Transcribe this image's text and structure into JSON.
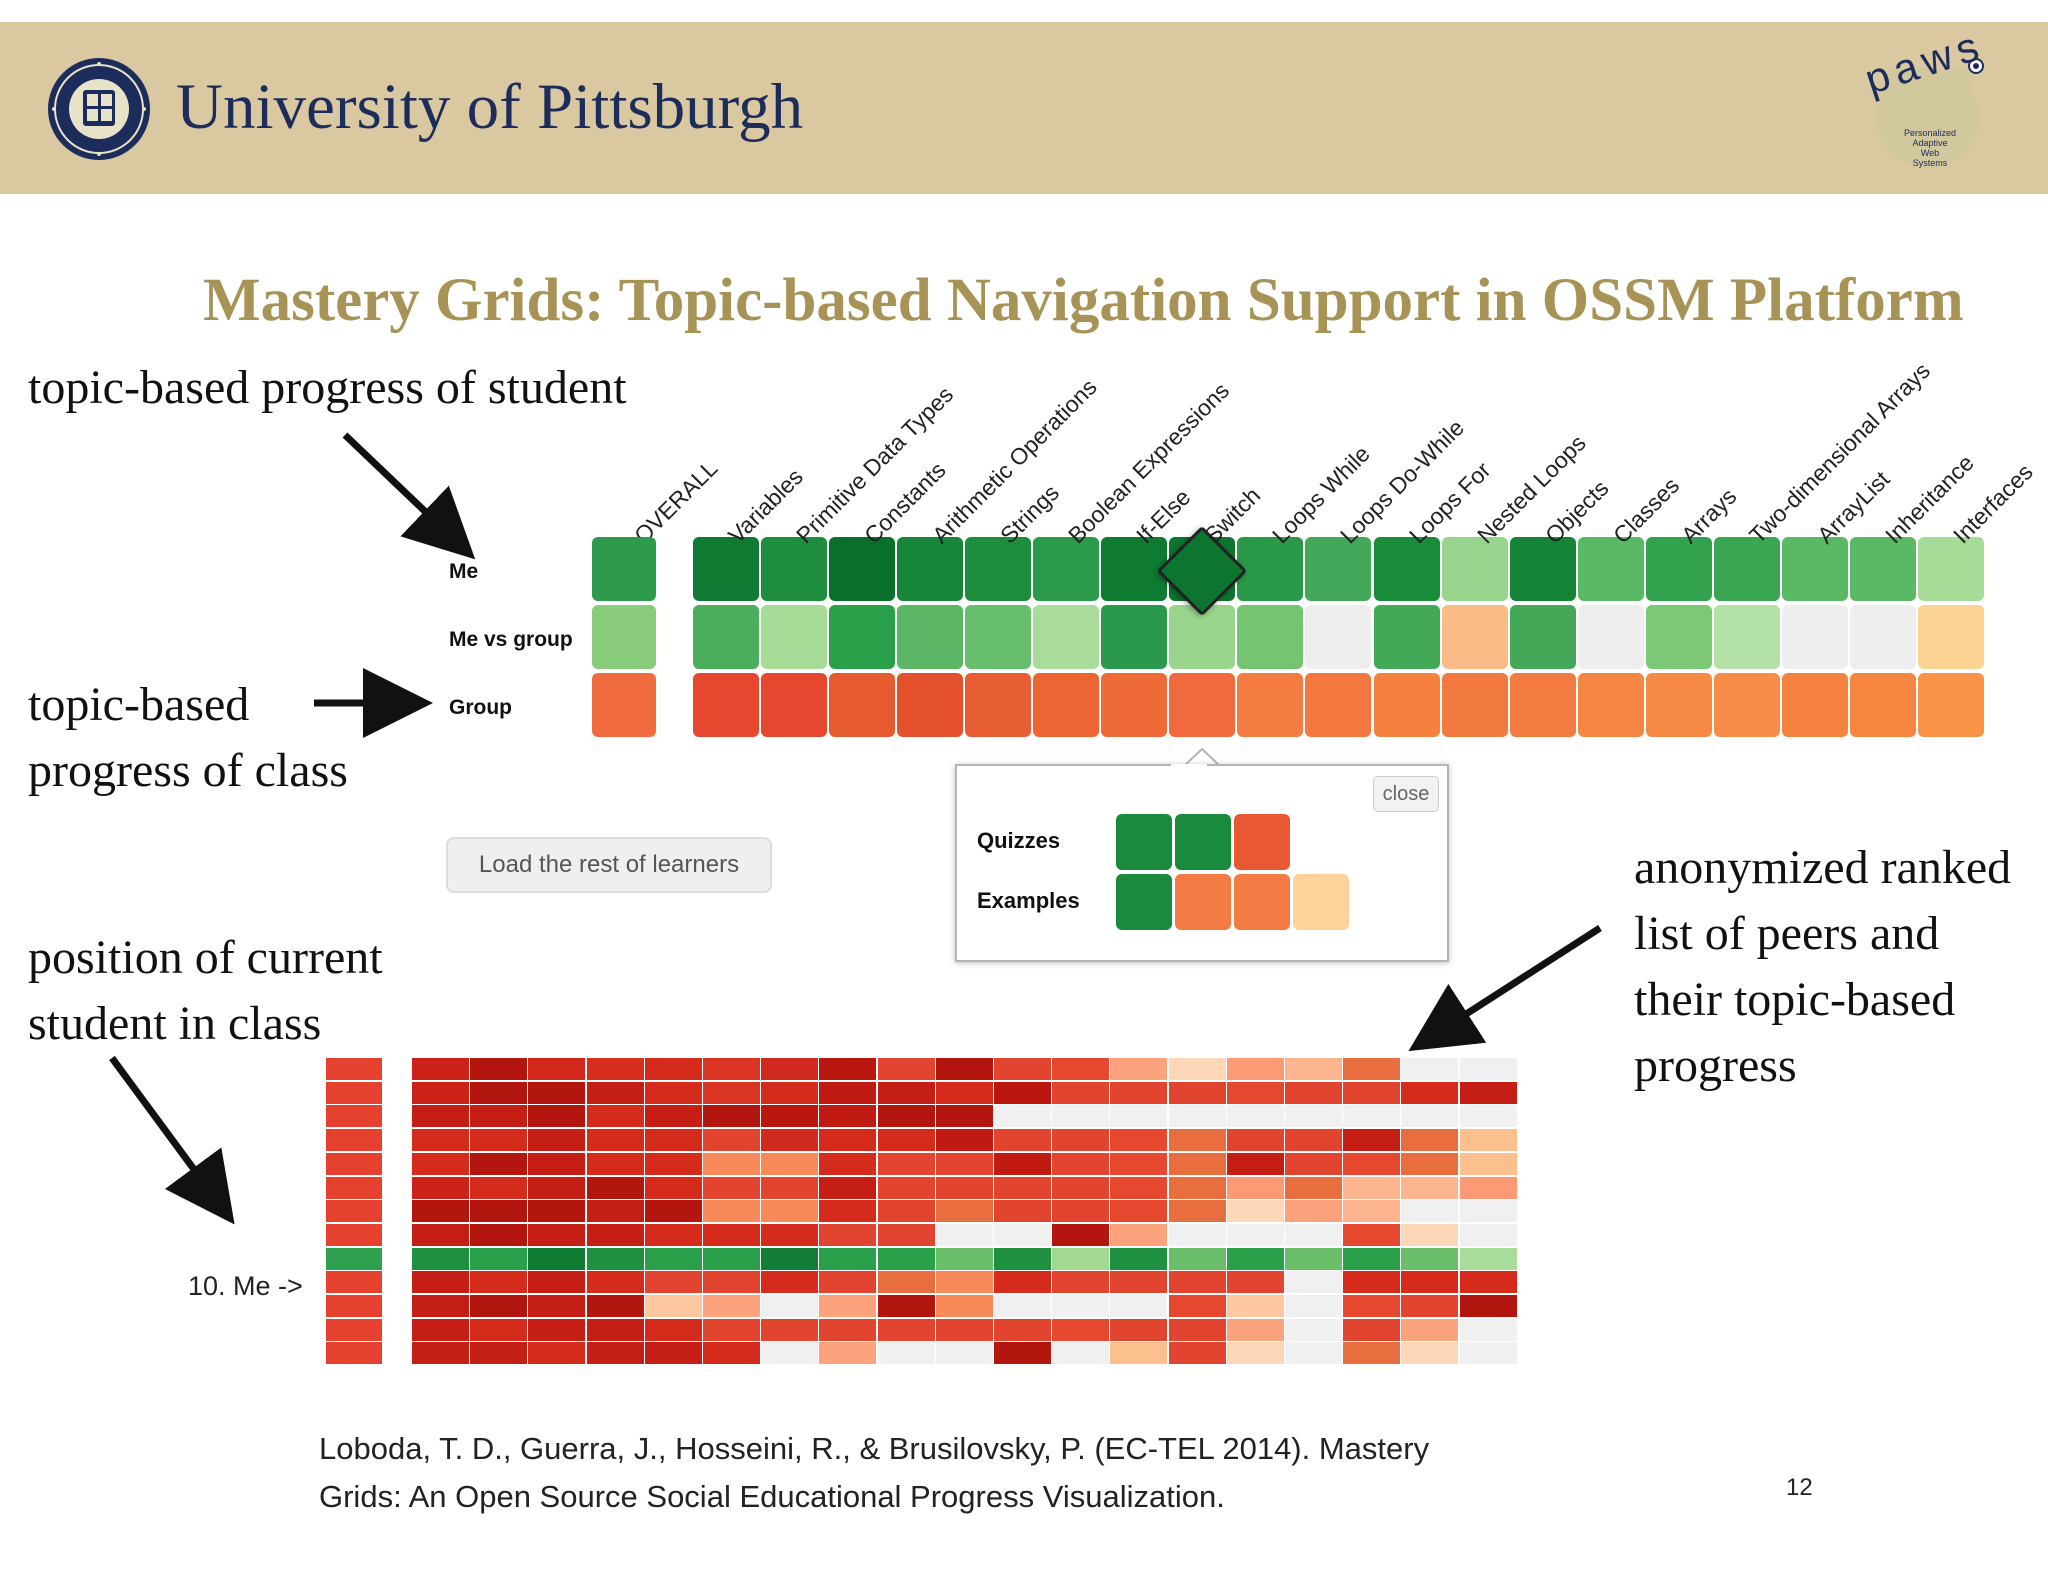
{
  "header": {
    "university": "University of Pittsburgh",
    "seal_icon": "university-seal",
    "paws_logo_text": "paws",
    "paws_subtitle": [
      "Personalized",
      "Adaptive",
      "Web",
      "Systems"
    ]
  },
  "slide": {
    "title": "Mastery Grids: Topic-based Navigation Support in OSSM Platform",
    "page_number": "12"
  },
  "annotations": {
    "student_progress": "topic-based progress of student",
    "class_progress_line1": "topic-based",
    "class_progress_line2": "progress of class",
    "position_line1": "position of current",
    "position_line2": "student in class",
    "peers_line1": "anonymized ranked",
    "peers_line2": "list of peers and",
    "peers_line3": "their topic-based",
    "peers_line4": "progress"
  },
  "grid": {
    "overall_label": "OVERALL",
    "topics": [
      "Variables",
      "Primitive Data Types",
      "Constants",
      "Arithmetic Operations",
      "Strings",
      "Boolean Expressions",
      "If-Else",
      "Switch",
      "Loops While",
      "Loops Do-While",
      "Loops For",
      "Nested Loops",
      "Objects",
      "Classes",
      "Arrays",
      "Two-dimensional Arrays",
      "ArrayList",
      "Inheritance",
      "Interfaces"
    ],
    "rows": [
      {
        "label": "Me",
        "overall": "#2e9a4c",
        "cells": [
          "#0f7a32",
          "#1e8e3e",
          "#08702b",
          "#178638",
          "#1e8e3e",
          "#2b9a4b",
          "#0f7a32",
          "#0c7530",
          "#2a9849",
          "#44a85b",
          "#1a8a3b",
          "#98d48e",
          "#158436",
          "#5ab965",
          "#33a24f",
          "#3aa553",
          "#5ab965",
          "#5ab965",
          "#a7dc98"
        ]
      },
      {
        "label": "Me vs group",
        "overall": "#88cc7c",
        "cells": [
          "#4aae5d",
          "#a6dc97",
          "#2ba04a",
          "#5bb766",
          "#67be6c",
          "#a9dc9b",
          "#2a994b",
          "#99d58c",
          "#74c471",
          "#eeeeee",
          "#43a858",
          "#fbbb86",
          "#44a858",
          "#eeeeee",
          "#7dc877",
          "#b3e1a6",
          "#eeeeee",
          "#eeeeee",
          "#fdd393"
        ]
      },
      {
        "label": "Group",
        "overall": "#f06b3d",
        "cells": [
          "#e5482f",
          "#e5482f",
          "#e55a2f",
          "#e5502e",
          "#e85e33",
          "#ec6633",
          "#ee6a36",
          "#f06a3e",
          "#f47c43",
          "#f27840",
          "#f6813f",
          "#f2793f",
          "#f37a41",
          "#f58543",
          "#f68a45",
          "#f78d46",
          "#f6823f",
          "#f68540",
          "#f89348"
        ]
      }
    ]
  },
  "popup": {
    "close_label": "close",
    "rows": [
      {
        "label": "Quizzes",
        "cells": [
          "#1a8b3c",
          "#1a8b3c",
          "#e85832"
        ]
      },
      {
        "label": "Examples",
        "cells": [
          "#1a8b3c",
          "#f47b44",
          "#f47b44",
          "#fdd39b"
        ]
      }
    ]
  },
  "load_button": "Load the rest of learners",
  "peer_list": {
    "current_label": "10. Me ->",
    "current_rank": 10,
    "rows": [
      {
        "overall": "#e5412f",
        "cells": [
          "#cc2218",
          "#b3150f",
          "#d2281c",
          "#d82e20",
          "#d42b1c",
          "#da3424",
          "#d02a1e",
          "#b8160f",
          "#e2452f",
          "#b3150f",
          "#e2452f",
          "#e5472f",
          "#fca27d",
          "#fdd7b8",
          "#fb9a75",
          "#fcb58f",
          "#e86d3f",
          "#f0f0f0",
          "#f0f0f0"
        ]
      },
      {
        "overall": "#e5412f",
        "cells": [
          "#cc2218",
          "#b3150f",
          "#b3150f",
          "#c51e15",
          "#d42b1c",
          "#da3424",
          "#d42b1c",
          "#c01b12",
          "#c51e15",
          "#d42b1c",
          "#b8160f",
          "#e2452f",
          "#e2452f",
          "#e2452f",
          "#e5472f",
          "#e2452f",
          "#e2452f",
          "#d42b1c",
          "#c51e15"
        ]
      },
      {
        "overall": "#e5412f",
        "cells": [
          "#c51e15",
          "#c51e15",
          "#b3150f",
          "#d42b1c",
          "#c51e15",
          "#b3150f",
          "#b8160f",
          "#c01b12",
          "#b3150f",
          "#b3150f",
          "#f0f0f0",
          "#f0f0f0",
          "#f0f0f0",
          "#f0f0f0",
          "#f0f0f0",
          "#f0f0f0",
          "#f0f0f0",
          "#f0f0f0",
          "#f0f0f0"
        ]
      },
      {
        "overall": "#e5412f",
        "cells": [
          "#d42b1c",
          "#d42b1c",
          "#c51e15",
          "#d42b1c",
          "#d42b1c",
          "#e2452f",
          "#d02a1e",
          "#d42b1c",
          "#d42b1c",
          "#c01b12",
          "#e2452f",
          "#e2452f",
          "#e5472f",
          "#e86d3f",
          "#e2452f",
          "#e2452f",
          "#c51e15",
          "#e86d3f",
          "#fcc08e"
        ]
      },
      {
        "overall": "#e5412f",
        "cells": [
          "#d42b1c",
          "#b3150f",
          "#c51e15",
          "#d42b1c",
          "#d42b1c",
          "#f88a5a",
          "#f88a5a",
          "#d42b1c",
          "#e2452f",
          "#e2452f",
          "#c01b12",
          "#e2452f",
          "#e5472f",
          "#e86d3f",
          "#c51e15",
          "#e2452f",
          "#e5472f",
          "#e86d3f",
          "#fcc08e"
        ]
      },
      {
        "overall": "#e5412f",
        "cells": [
          "#cc2218",
          "#d42b1c",
          "#c51e15",
          "#b3150f",
          "#d42b1c",
          "#e2452f",
          "#e2452f",
          "#c51e15",
          "#e2452f",
          "#e2452f",
          "#e2452f",
          "#e2452f",
          "#e5472f",
          "#e86d3f",
          "#fb9a75",
          "#e86d3f",
          "#fcb58f",
          "#fcb58f",
          "#fb9a75"
        ]
      },
      {
        "overall": "#e5412f",
        "cells": [
          "#b3150f",
          "#b3150f",
          "#b3150f",
          "#c51e15",
          "#b3150f",
          "#f88a5a",
          "#f88a5a",
          "#d42b1c",
          "#e2452f",
          "#e86d3f",
          "#e2452f",
          "#e2452f",
          "#e5472f",
          "#e86d3f",
          "#fdd7b8",
          "#fca27d",
          "#fcb58f",
          "#f0f0f0",
          "#f0f0f0"
        ]
      },
      {
        "overall": "#e5412f",
        "cells": [
          "#c51e15",
          "#b3150f",
          "#c51e15",
          "#c51e15",
          "#d42b1c",
          "#d42b1c",
          "#d42b1c",
          "#e2452f",
          "#e2452f",
          "#f0f0f0",
          "#f0f0f0",
          "#b3150f",
          "#fca27d",
          "#f0f0f0",
          "#f0f0f0",
          "#f0f0f0",
          "#e5472f",
          "#fdd7b8",
          "#f0f0f0"
        ]
      },
      {
        "overall": "#2fa04e",
        "cells": [
          "#1f8f40",
          "#2aa04a",
          "#0f7a32",
          "#1f8f40",
          "#2aa04a",
          "#2aa04a",
          "#137c36",
          "#2aa04a",
          "#2aa04a",
          "#6cbf6a",
          "#1f8f40",
          "#a2d892",
          "#1f8f40",
          "#6cbf6a",
          "#2aa04a",
          "#6cbf6a",
          "#2aa04a",
          "#6cbf6a",
          "#a8dc9a"
        ]
      },
      {
        "overall": "#e5412f",
        "cells": [
          "#c51e15",
          "#d42b1c",
          "#c51e15",
          "#d42b1c",
          "#e2452f",
          "#e2452f",
          "#d42b1c",
          "#e2452f",
          "#e86d3f",
          "#f88a5a",
          "#d42b1c",
          "#e2452f",
          "#e2452f",
          "#e2452f",
          "#e2452f",
          "#f0f0f0",
          "#d42b1c",
          "#d42b1c",
          "#d42b1c"
        ]
      },
      {
        "overall": "#e5412f",
        "cells": [
          "#c51e15",
          "#b3150f",
          "#c51e15",
          "#b3150f",
          "#fdc89f",
          "#fca27d",
          "#f0f0f0",
          "#fca27d",
          "#b3150f",
          "#f88a5a",
          "#f0f0f0",
          "#f0f0f0",
          "#f0f0f0",
          "#e5472f",
          "#fdc89f",
          "#f0f0f0",
          "#e5472f",
          "#e2452f",
          "#b3150f"
        ]
      },
      {
        "overall": "#e5412f",
        "cells": [
          "#c51e15",
          "#d42b1c",
          "#c51e15",
          "#c51e15",
          "#d42b1c",
          "#e2452f",
          "#e2452f",
          "#e2452f",
          "#e2452f",
          "#e2452f",
          "#e2452f",
          "#e5472f",
          "#e2452f",
          "#e2452f",
          "#fca27d",
          "#f0f0f0",
          "#e2452f",
          "#fca27d",
          "#f0f0f0"
        ]
      },
      {
        "overall": "#e5412f",
        "cells": [
          "#c51e15",
          "#c51e15",
          "#d42b1c",
          "#c51e15",
          "#c51e15",
          "#d42b1c",
          "#f0f0f0",
          "#fca27d",
          "#f0f0f0",
          "#f0f0f0",
          "#b3150f",
          "#f0f0f0",
          "#fcc08e",
          "#e2452f",
          "#fdd7b8",
          "#f0f0f0",
          "#e86d3f",
          "#fdd7b8",
          "#f0f0f0"
        ]
      }
    ]
  },
  "reference": {
    "line1": "Loboda, T. D., Guerra, J., Hosseini, R., & Brusilovsky, P. (EC-TEL 2014). Mastery",
    "line2": "Grids: An Open Source Social Educational Progress Visualization."
  }
}
